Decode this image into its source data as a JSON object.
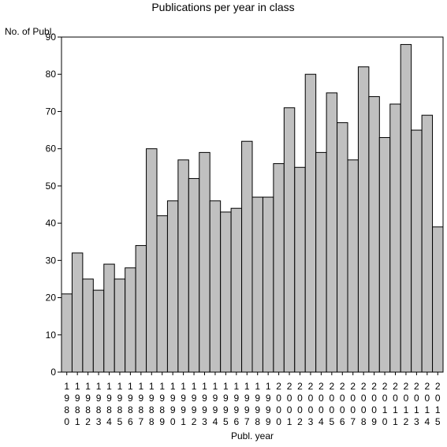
{
  "chart_data": {
    "type": "bar",
    "title": "Publications per year in class",
    "ylabel": "No. of Publ.",
    "xlabel": "Publ. year",
    "ylim": [
      0,
      90
    ],
    "yticks": [
      0,
      10,
      20,
      30,
      40,
      50,
      60,
      70,
      80,
      90
    ],
    "grid": false,
    "bar_color": "#c0c0c0",
    "categories": [
      "1980",
      "1981",
      "1982",
      "1983",
      "1984",
      "1985",
      "1986",
      "1987",
      "1988",
      "1989",
      "1990",
      "1991",
      "1992",
      "1993",
      "1994",
      "1995",
      "1996",
      "1997",
      "1998",
      "1999",
      "2000",
      "2001",
      "2002",
      "2003",
      "2004",
      "2005",
      "2006",
      "2007",
      "2008",
      "2009",
      "2010",
      "2011",
      "2012",
      "2013",
      "2014",
      "2015"
    ],
    "values": [
      21,
      32,
      25,
      22,
      29,
      25,
      28,
      34,
      60,
      42,
      46,
      57,
      52,
      59,
      46,
      43,
      44,
      62,
      47,
      47,
      56,
      71,
      55,
      80,
      59,
      75,
      67,
      57,
      82,
      74,
      63,
      72,
      88,
      65,
      69,
      39
    ]
  }
}
